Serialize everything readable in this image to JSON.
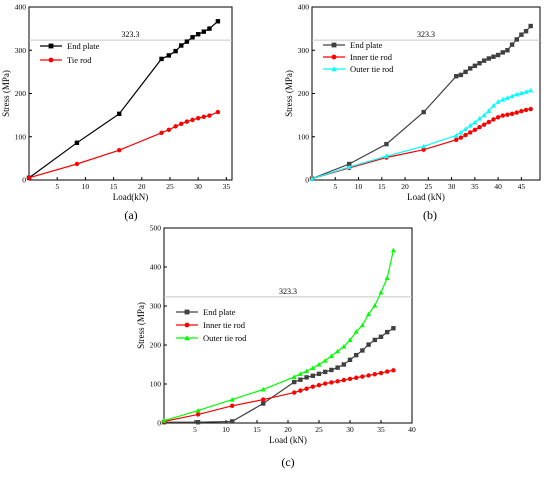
{
  "chart_data": [
    {
      "type": "line",
      "panel_label": "(a)",
      "xlabel": "Load(kN)",
      "ylabel": "Stress (MPa)",
      "xlim": [
        0,
        36
      ],
      "ylim": [
        0,
        400
      ],
      "xticks": [
        5,
        10,
        15,
        20,
        25,
        30,
        35
      ],
      "yticks": [
        0,
        100,
        200,
        300,
        400
      ],
      "reference_line": {
        "value": 323.3,
        "label": "323.3"
      },
      "legend_position": "top-left",
      "series": [
        {
          "name": "End plate",
          "color": "#000000",
          "marker": "square",
          "x": [
            0,
            8.5,
            16,
            23.5,
            24.8,
            26,
            27,
            28,
            29,
            30,
            31,
            32,
            33.5
          ],
          "y": [
            5,
            86,
            153,
            280,
            288,
            298,
            311,
            320,
            330,
            337,
            343,
            350,
            367
          ]
        },
        {
          "name": "Tie rod",
          "color": "#ff0000",
          "marker": "circle",
          "x": [
            0,
            8.5,
            16,
            23.5,
            24.8,
            26,
            27,
            28,
            29,
            30,
            31,
            32,
            33.5
          ],
          "y": [
            5,
            37,
            69,
            109,
            116,
            124,
            130,
            135,
            139,
            143,
            146,
            149,
            157
          ]
        }
      ]
    },
    {
      "type": "line",
      "panel_label": "(b)",
      "xlabel": "Load (kN)",
      "ylabel": "Stress (MPa)",
      "xlim": [
        0,
        49
      ],
      "ylim": [
        0,
        400
      ],
      "xticks": [
        5,
        10,
        15,
        20,
        25,
        30,
        35,
        40,
        45
      ],
      "yticks": [
        0,
        100,
        200,
        300,
        400
      ],
      "reference_line": {
        "value": 323.3,
        "label": "323.3"
      },
      "legend_position": "top-left",
      "series": [
        {
          "name": "End plate",
          "color": "#404040",
          "marker": "square",
          "x": [
            0,
            8,
            16,
            24,
            31,
            32,
            33,
            34,
            35,
            36,
            37,
            38,
            39,
            40,
            41,
            42,
            43,
            44,
            45,
            46,
            47
          ],
          "y": [
            3,
            37,
            83,
            157,
            240,
            243,
            250,
            258,
            264,
            270,
            276,
            281,
            285,
            289,
            295,
            300,
            313,
            325,
            336,
            344,
            356
          ]
        },
        {
          "name": "Inner tie rod",
          "color": "#ff0000",
          "marker": "circle",
          "x": [
            0,
            8,
            16,
            24,
            31,
            32,
            33,
            34,
            35,
            36,
            37,
            38,
            39,
            40,
            41,
            42,
            43,
            44,
            45,
            46,
            47
          ],
          "y": [
            3,
            28,
            52,
            70,
            93,
            98,
            104,
            110,
            116,
            122,
            128,
            134,
            140,
            145,
            149,
            151,
            153,
            156,
            159,
            162,
            164
          ]
        },
        {
          "name": "Outer tie rod",
          "color": "#00ffff",
          "marker": "triangle",
          "x": [
            0,
            8,
            16,
            24,
            31,
            32,
            33,
            34,
            35,
            36,
            37,
            38,
            39,
            40,
            41,
            42,
            43,
            44,
            45,
            46,
            47
          ],
          "y": [
            3,
            30,
            55,
            78,
            103,
            110,
            118,
            126,
            133,
            142,
            150,
            160,
            172,
            181,
            186,
            190,
            194,
            198,
            201,
            204,
            207
          ]
        }
      ]
    },
    {
      "type": "line",
      "panel_label": "(c)",
      "xlabel": "Load (kN)",
      "ylabel": "Stress (MPa)",
      "xlim": [
        0,
        40
      ],
      "ylim": [
        0,
        500
      ],
      "xticks": [
        5,
        10,
        15,
        20,
        25,
        30,
        35,
        40
      ],
      "yticks": [
        0,
        100,
        200,
        300,
        400,
        500
      ],
      "reference_line": {
        "value": 323.3,
        "label": "323.3"
      },
      "legend_position": "center-left",
      "series": [
        {
          "name": "End plate",
          "color": "#404040",
          "marker": "square",
          "x": [
            0,
            5.5,
            11,
            16,
            21,
            22,
            23,
            24,
            25,
            26,
            27,
            28,
            29,
            30,
            31,
            32,
            33,
            34,
            35,
            36,
            37
          ],
          "y": [
            2,
            2,
            4,
            50,
            105,
            111,
            117,
            121,
            126,
            131,
            136,
            142,
            150,
            162,
            174,
            186,
            201,
            213,
            221,
            233,
            243
          ]
        },
        {
          "name": "Inner tie rod",
          "color": "#ff0000",
          "marker": "circle",
          "x": [
            0,
            5.5,
            11,
            16,
            21,
            22,
            23,
            24,
            25,
            26,
            27,
            28,
            29,
            30,
            31,
            32,
            33,
            34,
            35,
            36,
            37
          ],
          "y": [
            4,
            22,
            44,
            60,
            78,
            83,
            88,
            93,
            97,
            101,
            104,
            107,
            110,
            113,
            116,
            119,
            122,
            125,
            128,
            132,
            135
          ]
        },
        {
          "name": "Outer tie rod",
          "color": "#00ff00",
          "marker": "triangle",
          "x": [
            0,
            5.5,
            11,
            16,
            21,
            22,
            23,
            24,
            25,
            26,
            27,
            28,
            29,
            30,
            31,
            32,
            33,
            34,
            35,
            36,
            37
          ],
          "y": [
            6,
            32,
            60,
            86,
            118,
            126,
            133,
            141,
            150,
            160,
            172,
            184,
            196,
            213,
            234,
            251,
            279,
            301,
            335,
            372,
            443
          ]
        }
      ]
    }
  ]
}
